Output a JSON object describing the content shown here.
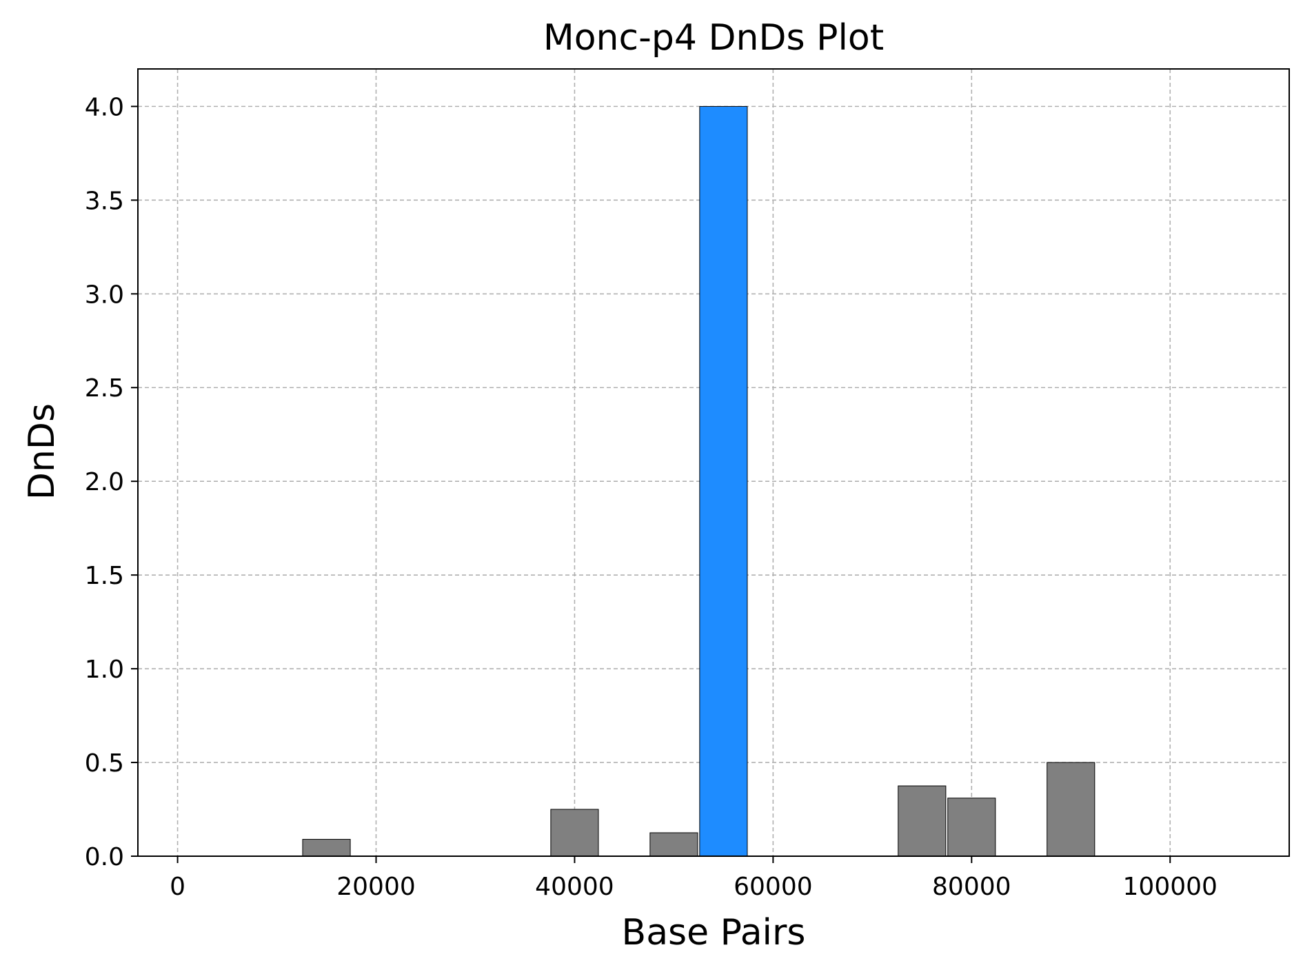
{
  "chart_data": {
    "type": "bar",
    "title": "Monc-p4 DnDs Plot",
    "xlabel": "Base Pairs",
    "ylabel": "DnDs",
    "xlim": [
      -4000,
      112000
    ],
    "ylim": [
      0,
      4.2
    ],
    "xticks": [
      0,
      20000,
      40000,
      60000,
      80000,
      100000
    ],
    "yticks": [
      0.0,
      0.5,
      1.0,
      1.5,
      2.0,
      2.5,
      3.0,
      3.5,
      4.0
    ],
    "ytick_labels": [
      "0.0",
      "0.5",
      "1.0",
      "1.5",
      "2.0",
      "2.5",
      "3.0",
      "3.5",
      "4.0"
    ],
    "xtick_labels": [
      "0",
      "20000",
      "40000",
      "60000",
      "80000",
      "100000"
    ],
    "grid": true,
    "bar_width": 4800,
    "default_color": "#808080",
    "highlight_color": "#1e8cff",
    "bars": [
      {
        "x": 15000,
        "value": 0.09,
        "highlight": false
      },
      {
        "x": 40000,
        "value": 0.25,
        "highlight": false
      },
      {
        "x": 50000,
        "value": 0.125,
        "highlight": false
      },
      {
        "x": 55000,
        "value": 4.0,
        "highlight": true
      },
      {
        "x": 75000,
        "value": 0.375,
        "highlight": false
      },
      {
        "x": 80000,
        "value": 0.31,
        "highlight": false
      },
      {
        "x": 90000,
        "value": 0.5,
        "highlight": false
      }
    ]
  }
}
